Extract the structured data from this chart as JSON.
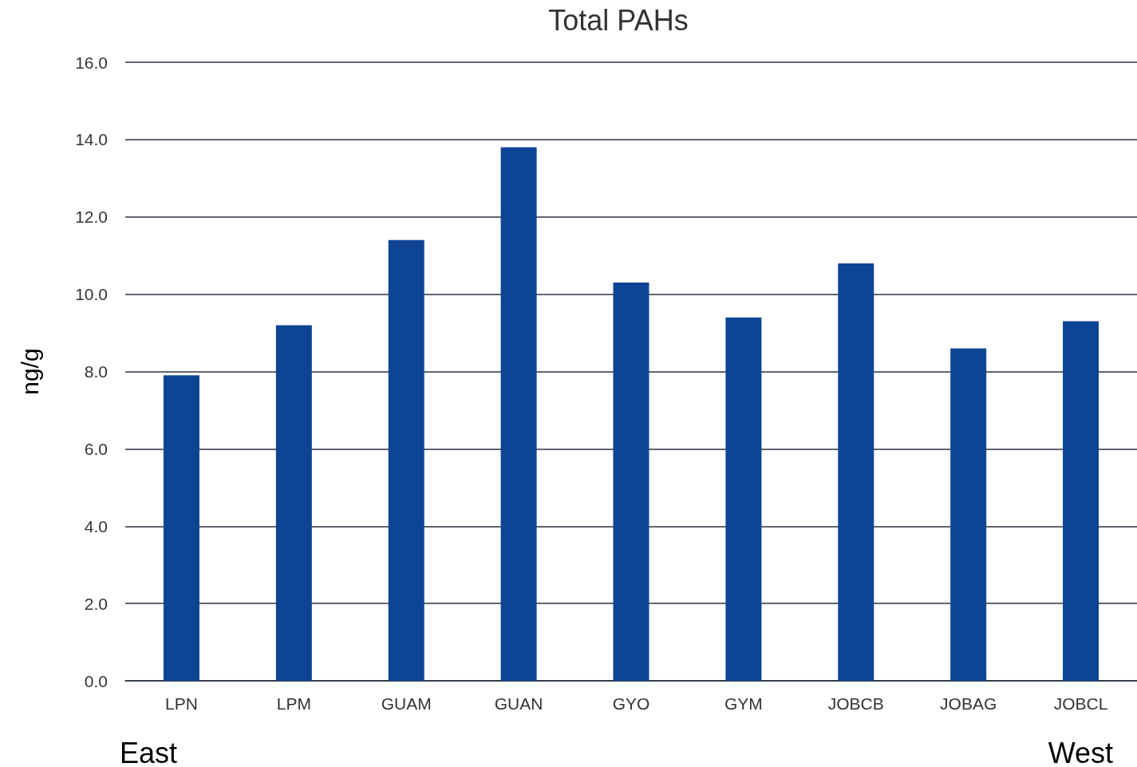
{
  "chart_data": {
    "type": "bar",
    "title": "Total PAHs",
    "ylabel": "ng/g",
    "categories": [
      "LPN",
      "LPM",
      "GUAM",
      "GUAN",
      "GYO",
      "GYM",
      "JOBCB",
      "JOBAG",
      "JOBCL"
    ],
    "values": [
      7.9,
      9.2,
      11.4,
      13.8,
      10.3,
      9.4,
      10.8,
      8.6,
      9.3
    ],
    "color": "#0d4594",
    "ylim": [
      0,
      16
    ],
    "yticks": [
      {
        "value": 0,
        "label": "0.0"
      },
      {
        "value": 2,
        "label": "2.0"
      },
      {
        "value": 4,
        "label": "4.0"
      },
      {
        "value": 6,
        "label": "6.0"
      },
      {
        "value": 8,
        "label": "8.0"
      },
      {
        "value": 10,
        "label": "10.0"
      },
      {
        "value": 12,
        "label": "12.0"
      },
      {
        "value": 14,
        "label": "14.0"
      },
      {
        "value": 16,
        "label": "16.0"
      }
    ],
    "grid": "y",
    "annotations": [
      "East",
      "West"
    ]
  }
}
